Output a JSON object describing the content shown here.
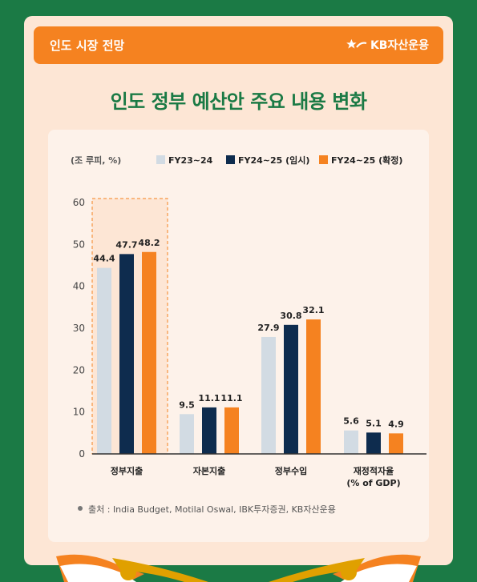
{
  "header": {
    "title": "인도 시장 전망",
    "logo_text": "KB자산운용"
  },
  "main_title": "인도 정부 예산안 주요 내용 변화",
  "unit_label": "(조 루피, %)",
  "source": "출처 : India Budget, Motilal Oswal, IBK투자증권, KB자산운용",
  "colors": {
    "fy23": "#d2dbe3",
    "fy24_interim": "#0e2c4e",
    "fy24_final": "#f58220",
    "accent_green": "#1b7a45"
  },
  "chart_data": {
    "type": "bar",
    "categories": [
      "정부지출",
      "자본지출",
      "정부수입",
      "재정적자율\n(% of GDP)"
    ],
    "series": [
      {
        "name": "FY23~24",
        "values": [
          44.4,
          9.5,
          27.9,
          5.6
        ]
      },
      {
        "name": "FY24~25 (임시)",
        "values": [
          47.7,
          11.1,
          30.8,
          5.1
        ]
      },
      {
        "name": "FY24~25 (확정)",
        "values": [
          48.2,
          11.1,
          32.1,
          4.9
        ]
      }
    ],
    "yticks": [
      "0",
      "10",
      "20",
      "30",
      "40",
      "50",
      "60"
    ],
    "ylim": [
      0,
      60
    ],
    "legend_position": "top-right",
    "highlighted_category": "정부지출"
  }
}
